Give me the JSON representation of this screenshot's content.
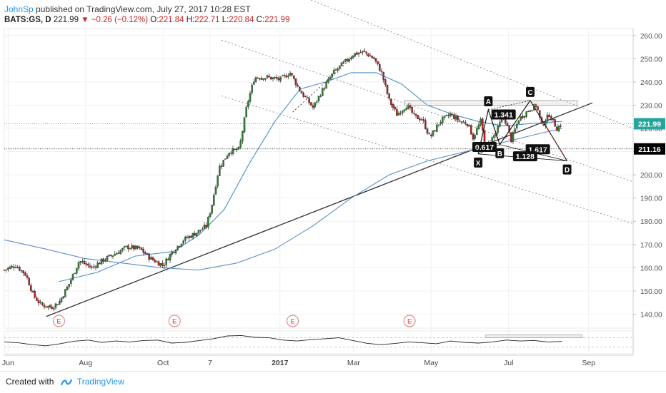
{
  "header": {
    "author": "JohnSp",
    "published": "published on TradingView.com, July 27, 2017 10:28 EST",
    "symbol": "BATS:GS, D",
    "last": "221.99",
    "change": "−0.26 (−0.12%)",
    "open_label": "O:",
    "open": "221.84",
    "high_label": "H:",
    "high": "222.71",
    "low_label": "L:",
    "low": "220.84",
    "close_label": "C:",
    "close": "221.99"
  },
  "footer": {
    "created_with": "Created with",
    "brand": "TradingView"
  },
  "chart_data": {
    "type": "candlestick",
    "symbol": "BATS:GS",
    "interval": "D",
    "y_ticks": [
      140,
      150,
      160,
      170,
      180,
      190,
      200,
      210,
      220,
      230,
      240,
      250,
      260
    ],
    "ylim": [
      134,
      263
    ],
    "x_labels": [
      {
        "text": "Jun",
        "day": 0
      },
      {
        "text": "Aug",
        "day": 61
      },
      {
        "text": "Oct",
        "day": 122
      },
      {
        "text": "7",
        "day": 159
      },
      {
        "text": "2017",
        "day": 214
      },
      {
        "text": "Mar",
        "day": 272
      },
      {
        "text": "May",
        "day": 333
      },
      {
        "text": "Jul",
        "day": 394
      },
      {
        "text": "Sep",
        "day": 457
      }
    ],
    "x_range_days": [
      -3,
      492
    ],
    "current_price_label": "221.99",
    "current_price_color": "#26a69a",
    "horizontal_level_label": "211.16",
    "horizontal_level_color": "#000000",
    "price_anchors": [
      {
        "day": -3,
        "price": 159
      },
      {
        "day": 6,
        "price": 161
      },
      {
        "day": 14,
        "price": 157
      },
      {
        "day": 20,
        "price": 148
      },
      {
        "day": 26,
        "price": 144
      },
      {
        "day": 34,
        "price": 143
      },
      {
        "day": 40,
        "price": 145
      },
      {
        "day": 48,
        "price": 153
      },
      {
        "day": 56,
        "price": 163
      },
      {
        "day": 66,
        "price": 160
      },
      {
        "day": 74,
        "price": 163
      },
      {
        "day": 84,
        "price": 166
      },
      {
        "day": 94,
        "price": 169
      },
      {
        "day": 104,
        "price": 168
      },
      {
        "day": 112,
        "price": 164
      },
      {
        "day": 122,
        "price": 161
      },
      {
        "day": 128,
        "price": 166
      },
      {
        "day": 138,
        "price": 172
      },
      {
        "day": 148,
        "price": 175
      },
      {
        "day": 156,
        "price": 178
      },
      {
        "day": 160,
        "price": 186
      },
      {
        "day": 166,
        "price": 203
      },
      {
        "day": 174,
        "price": 210
      },
      {
        "day": 182,
        "price": 211
      },
      {
        "day": 188,
        "price": 230
      },
      {
        "day": 194,
        "price": 242
      },
      {
        "day": 204,
        "price": 242
      },
      {
        "day": 214,
        "price": 241
      },
      {
        "day": 222,
        "price": 244
      },
      {
        "day": 230,
        "price": 236
      },
      {
        "day": 240,
        "price": 229
      },
      {
        "day": 248,
        "price": 237
      },
      {
        "day": 256,
        "price": 244
      },
      {
        "day": 264,
        "price": 248
      },
      {
        "day": 272,
        "price": 252
      },
      {
        "day": 280,
        "price": 253
      },
      {
        "day": 288,
        "price": 250
      },
      {
        "day": 294,
        "price": 244
      },
      {
        "day": 300,
        "price": 232
      },
      {
        "day": 306,
        "price": 226
      },
      {
        "day": 314,
        "price": 230
      },
      {
        "day": 320,
        "price": 225
      },
      {
        "day": 326,
        "price": 224
      },
      {
        "day": 332,
        "price": 216
      },
      {
        "day": 340,
        "price": 223
      },
      {
        "day": 348,
        "price": 226
      },
      {
        "day": 356,
        "price": 223
      },
      {
        "day": 362,
        "price": 222
      },
      {
        "day": 366,
        "price": 216
      },
      {
        "day": 372,
        "price": 223
      },
      {
        "day": 376,
        "price": 212
      },
      {
        "day": 384,
        "price": 218
      },
      {
        "day": 390,
        "price": 226
      },
      {
        "day": 396,
        "price": 215
      },
      {
        "day": 402,
        "price": 224
      },
      {
        "day": 410,
        "price": 228
      },
      {
        "day": 416,
        "price": 230
      },
      {
        "day": 420,
        "price": 221
      },
      {
        "day": 426,
        "price": 226
      },
      {
        "day": 432,
        "price": 220
      },
      {
        "day": 436,
        "price": 222
      }
    ],
    "ma_short": [
      {
        "day": 40,
        "price": 154
      },
      {
        "day": 70,
        "price": 158
      },
      {
        "day": 100,
        "price": 165
      },
      {
        "day": 130,
        "price": 167
      },
      {
        "day": 150,
        "price": 174
      },
      {
        "day": 170,
        "price": 185
      },
      {
        "day": 190,
        "price": 205
      },
      {
        "day": 210,
        "price": 223
      },
      {
        "day": 230,
        "price": 237
      },
      {
        "day": 250,
        "price": 240
      },
      {
        "day": 270,
        "price": 244
      },
      {
        "day": 290,
        "price": 244
      },
      {
        "day": 310,
        "price": 239
      },
      {
        "day": 330,
        "price": 230
      },
      {
        "day": 350,
        "price": 226
      },
      {
        "day": 370,
        "price": 223
      },
      {
        "day": 390,
        "price": 221
      },
      {
        "day": 410,
        "price": 222
      },
      {
        "day": 436,
        "price": 223
      }
    ],
    "ma_long": [
      {
        "day": -3,
        "price": 172
      },
      {
        "day": 30,
        "price": 168
      },
      {
        "day": 60,
        "price": 164
      },
      {
        "day": 90,
        "price": 162
      },
      {
        "day": 120,
        "price": 160
      },
      {
        "day": 150,
        "price": 159
      },
      {
        "day": 180,
        "price": 162
      },
      {
        "day": 210,
        "price": 168
      },
      {
        "day": 240,
        "price": 178
      },
      {
        "day": 270,
        "price": 190
      },
      {
        "day": 300,
        "price": 200
      },
      {
        "day": 330,
        "price": 206
      },
      {
        "day": 360,
        "price": 210
      },
      {
        "day": 390,
        "price": 214
      },
      {
        "day": 420,
        "price": 218
      },
      {
        "day": 436,
        "price": 220
      }
    ],
    "trendlines": [
      {
        "style": "solid",
        "color": "#333333",
        "from": {
          "day": 30,
          "price": 139
        },
        "to": {
          "day": 460,
          "price": 231
        }
      },
      {
        "style": "dotted",
        "color": "#888888",
        "from": {
          "day": 194,
          "price": 285
        },
        "to": {
          "day": 492,
          "price": 220
        }
      },
      {
        "style": "dotted",
        "color": "#888888",
        "from": {
          "day": 168,
          "price": 258
        },
        "to": {
          "day": 492,
          "price": 197
        }
      },
      {
        "style": "dotted",
        "color": "#888888",
        "from": {
          "day": 168,
          "price": 234
        },
        "to": {
          "day": 492,
          "price": 179
        }
      },
      {
        "style": "dotted",
        "color": "#333333",
        "from": {
          "day": 224,
          "price": 227
        },
        "to": {
          "day": 268,
          "price": 249
        }
      }
    ],
    "harmonic_pattern": {
      "points": [
        {
          "label": "X",
          "day": 370,
          "price": 209
        },
        {
          "label": "A",
          "day": 378,
          "price": 228
        },
        {
          "label": "B",
          "day": 387,
          "price": 213
        },
        {
          "label": "C",
          "day": 411,
          "price": 232
        },
        {
          "label": "D",
          "day": 440,
          "price": 206
        }
      ],
      "ratios": [
        {
          "text": "1.341",
          "day": 390,
          "price": 226
        },
        {
          "text": "0.617",
          "day": 375,
          "price": 212
        },
        {
          "text": "1.617",
          "day": 417,
          "price": 211
        },
        {
          "text": "1.128",
          "day": 407,
          "price": 208
        }
      ]
    },
    "resistance_box": {
      "day_start": 312,
      "day_end": 448,
      "price_low": 230,
      "price_high": 232
    },
    "earnings_markers": [
      {
        "text": "E",
        "day": 40
      },
      {
        "text": "E",
        "day": 131
      },
      {
        "text": "E",
        "day": 224
      },
      {
        "text": "E",
        "day": 316
      }
    ],
    "oscillator": {
      "type": "line",
      "values": [
        52,
        48,
        40,
        35,
        44,
        55,
        60,
        50,
        56,
        52,
        58,
        60,
        47,
        50,
        58,
        66,
        78,
        80,
        72,
        70,
        60,
        56,
        62,
        66,
        70,
        58,
        46,
        40,
        45,
        52,
        48,
        44,
        56,
        50,
        47,
        52,
        60,
        56,
        58,
        52,
        54
      ],
      "levels": [
        30,
        70
      ],
      "box": {
        "day_start": 376,
        "day_end": 452,
        "value": 77
      }
    }
  }
}
